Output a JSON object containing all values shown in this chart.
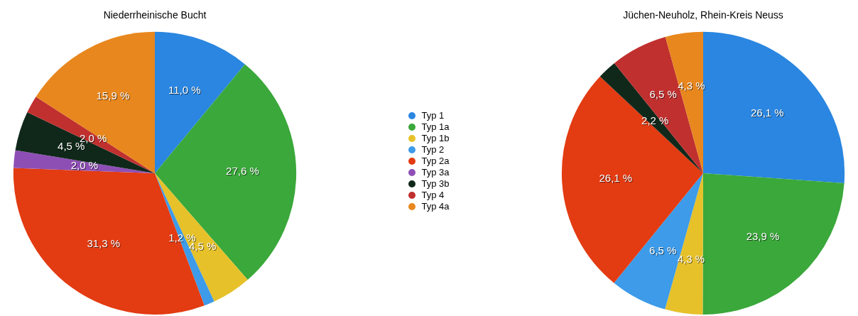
{
  "chart_data": {
    "type": "pie",
    "categories": [
      "Typ 1",
      "Typ 1a",
      "Typ 1b",
      "Typ 2",
      "Typ 2a",
      "Typ 3a",
      "Typ 3b",
      "Typ 4",
      "Typ 4a"
    ],
    "colors": [
      "#2a86e0",
      "#3aa83a",
      "#e6c12a",
      "#3d9be9",
      "#e33b12",
      "#8e4fb5",
      "#10281a",
      "#c0302f",
      "#e8871e"
    ],
    "series": [
      {
        "name": "Niederrheinische Bucht",
        "values": [
          11.0,
          27.6,
          4.5,
          1.2,
          31.3,
          2.0,
          4.5,
          2.0,
          15.9
        ],
        "value_labels": [
          "11,0 %",
          "27,6 %",
          "4,5 %",
          "1,2 %",
          "31,3 %",
          "2,0 %",
          "4,5 %",
          "2,0 %",
          "15,9 %"
        ]
      },
      {
        "name": "Jüchen-Neuholz, Rhein-Kreis Neuss",
        "values": [
          26.1,
          23.9,
          4.3,
          6.5,
          26.1,
          0,
          2.2,
          6.5,
          4.3
        ],
        "value_labels": [
          "26,1 %",
          "23,9 %",
          "4,3 %",
          "6,5 %",
          "26,1 %",
          null,
          "2,2 %",
          "6,5 %",
          "4,3 %"
        ]
      }
    ],
    "legend": "right"
  }
}
